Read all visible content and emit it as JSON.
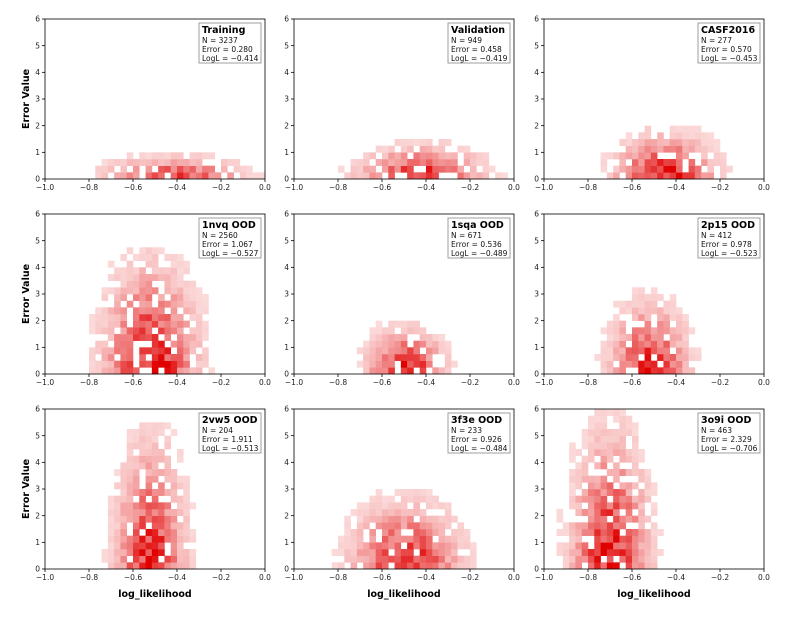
{
  "figure": {
    "xlabel": "log_likelihood",
    "ylabel": "Error Value"
  },
  "chart_data": [
    {
      "type": "heatmap",
      "title": "Training",
      "stats": [
        "N = 3237",
        "Error = 0.280",
        "LogL = −0.414"
      ],
      "xlim": [
        -1.0,
        0.0
      ],
      "ylim": [
        0,
        6
      ],
      "xticks": [
        -1.0,
        -0.8,
        -0.6,
        -0.4,
        -0.2,
        0.0
      ],
      "xtick_labels": [
        "−1.0",
        "−0.8",
        "−0.6",
        "−0.4",
        "−0.2",
        "0.0"
      ],
      "yticks": [
        0,
        1,
        2,
        3,
        4,
        5,
        6
      ],
      "ytick_labels": [
        "0",
        "1",
        "2",
        "3",
        "4",
        "5",
        "6"
      ],
      "xlabel": "",
      "ylabel": "Error Value",
      "density": {
        "center": -0.414,
        "spread": 0.18,
        "ymax": 1.0,
        "peak": 0.75
      }
    },
    {
      "type": "heatmap",
      "title": "Validation",
      "stats": [
        "N = 949",
        "Error = 0.458",
        "LogL = −0.419"
      ],
      "xlim": [
        -1.0,
        0.0
      ],
      "ylim": [
        0,
        6
      ],
      "xticks": [
        -1.0,
        -0.8,
        -0.6,
        -0.4,
        -0.2,
        0.0
      ],
      "xtick_labels": [
        "−1.0",
        "−0.8",
        "−0.6",
        "−0.4",
        "−0.2",
        "0.0"
      ],
      "yticks": [
        0,
        1,
        2,
        3,
        4,
        5,
        6
      ],
      "ytick_labels": [
        "0",
        "1",
        "2",
        "3",
        "4",
        "5",
        "6"
      ],
      "xlabel": "",
      "ylabel": "",
      "density": {
        "center": -0.42,
        "spread": 0.16,
        "ymax": 1.5,
        "peak": 0.85
      }
    },
    {
      "type": "heatmap",
      "title": "CASF2016",
      "stats": [
        "N = 277",
        "Error = 0.570",
        "LogL = −0.453"
      ],
      "xlim": [
        -1.0,
        0.0
      ],
      "ylim": [
        0,
        6
      ],
      "xticks": [
        -1.0,
        -0.8,
        -0.6,
        -0.4,
        -0.2,
        0.0
      ],
      "xtick_labels": [
        "−1.0",
        "−0.8",
        "−0.6",
        "−0.4",
        "−0.2",
        "0.0"
      ],
      "yticks": [
        0,
        1,
        2,
        3,
        4,
        5,
        6
      ],
      "ytick_labels": [
        "0",
        "1",
        "2",
        "3",
        "4",
        "5",
        "6"
      ],
      "xlabel": "",
      "ylabel": "",
      "density": {
        "center": -0.45,
        "spread": 0.13,
        "ymax": 2.0,
        "peak": 0.9
      }
    },
    {
      "type": "heatmap",
      "title": "1nvq OOD",
      "stats": [
        "N = 2560",
        "Error = 1.067",
        "LogL = −0.527"
      ],
      "xlim": [
        -1.0,
        0.0
      ],
      "ylim": [
        0,
        6
      ],
      "xticks": [
        -1.0,
        -0.8,
        -0.6,
        -0.4,
        -0.2,
        0.0
      ],
      "xtick_labels": [
        "−1.0",
        "−0.8",
        "−0.6",
        "−0.4",
        "−0.2",
        "0.0"
      ],
      "yticks": [
        0,
        1,
        2,
        3,
        4,
        5,
        6
      ],
      "ytick_labels": [
        "0",
        "1",
        "2",
        "3",
        "4",
        "5",
        "6"
      ],
      "xlabel": "",
      "ylabel": "Error Value",
      "density": {
        "center": -0.52,
        "spread": 0.12,
        "ymax": 4.8,
        "peak": 0.95
      }
    },
    {
      "type": "heatmap",
      "title": "1sqa OOD",
      "stats": [
        "N = 671",
        "Error = 0.536",
        "LogL = −0.489"
      ],
      "xlim": [
        -1.0,
        0.0
      ],
      "ylim": [
        0,
        6
      ],
      "xticks": [
        -1.0,
        -0.8,
        -0.6,
        -0.4,
        -0.2,
        0.0
      ],
      "xtick_labels": [
        "−1.0",
        "−0.8",
        "−0.6",
        "−0.4",
        "−0.2",
        "0.0"
      ],
      "yticks": [
        0,
        1,
        2,
        3,
        4,
        5,
        6
      ],
      "ytick_labels": [
        "0",
        "1",
        "2",
        "3",
        "4",
        "5",
        "6"
      ],
      "xlabel": "",
      "ylabel": "",
      "density": {
        "center": -0.49,
        "spread": 0.1,
        "ymax": 2.0,
        "peak": 0.9
      }
    },
    {
      "type": "heatmap",
      "title": "2p15 OOD",
      "stats": [
        "N = 412",
        "Error = 0.978",
        "LogL = −0.523"
      ],
      "xlim": [
        -1.0,
        0.0
      ],
      "ylim": [
        0,
        6
      ],
      "xticks": [
        -1.0,
        -0.8,
        -0.6,
        -0.4,
        -0.2,
        0.0
      ],
      "xtick_labels": [
        "−1.0",
        "−0.8",
        "−0.6",
        "−0.4",
        "−0.2",
        "0.0"
      ],
      "yticks": [
        0,
        1,
        2,
        3,
        4,
        5,
        6
      ],
      "ytick_labels": [
        "0",
        "1",
        "2",
        "3",
        "4",
        "5",
        "6"
      ],
      "xlabel": "",
      "ylabel": "",
      "density": {
        "center": -0.52,
        "spread": 0.1,
        "ymax": 3.2,
        "peak": 0.85
      }
    },
    {
      "type": "heatmap",
      "title": "2vw5 OOD",
      "stats": [
        "N = 204",
        "Error = 1.911",
        "LogL = −0.513"
      ],
      "xlim": [
        -1.0,
        0.0
      ],
      "ylim": [
        0,
        6
      ],
      "xticks": [
        -1.0,
        -0.8,
        -0.6,
        -0.4,
        -0.2,
        0.0
      ],
      "xtick_labels": [
        "−1.0",
        "−0.8",
        "−0.6",
        "−0.4",
        "−0.2",
        "0.0"
      ],
      "yticks": [
        0,
        1,
        2,
        3,
        4,
        5,
        6
      ],
      "ytick_labels": [
        "0",
        "1",
        "2",
        "3",
        "4",
        "5",
        "6"
      ],
      "xlabel": "log_likelihood",
      "ylabel": "Error Value",
      "density": {
        "center": -0.52,
        "spread": 0.09,
        "ymax": 5.6,
        "peak": 0.85
      }
    },
    {
      "type": "heatmap",
      "title": "3f3e OOD",
      "stats": [
        "N = 233",
        "Error = 0.926",
        "LogL = −0.484"
      ],
      "xlim": [
        -1.0,
        0.0
      ],
      "ylim": [
        0,
        6
      ],
      "xticks": [
        -1.0,
        -0.8,
        -0.6,
        -0.4,
        -0.2,
        0.0
      ],
      "xtick_labels": [
        "−1.0",
        "−0.8",
        "−0.6",
        "−0.4",
        "−0.2",
        "0.0"
      ],
      "yticks": [
        0,
        1,
        2,
        3,
        4,
        5,
        6
      ],
      "ytick_labels": [
        "0",
        "1",
        "2",
        "3",
        "4",
        "5",
        "6"
      ],
      "xlabel": "log_likelihood",
      "ylabel": "",
      "density": {
        "center": -0.49,
        "spread": 0.14,
        "ymax": 3.0,
        "peak": 0.85
      }
    },
    {
      "type": "heatmap",
      "title": "3o9i OOD",
      "stats": [
        "N = 463",
        "Error = 2.329",
        "LogL = −0.706"
      ],
      "xlim": [
        -1.0,
        0.0
      ],
      "ylim": [
        0,
        6
      ],
      "xticks": [
        -1.0,
        -0.8,
        -0.6,
        -0.4,
        -0.2,
        0.0
      ],
      "xtick_labels": [
        "−1.0",
        "−0.8",
        "−0.6",
        "−0.4",
        "−0.2",
        "0.0"
      ],
      "yticks": [
        0,
        1,
        2,
        3,
        4,
        5,
        6
      ],
      "ytick_labels": [
        "0",
        "1",
        "2",
        "3",
        "4",
        "5",
        "6"
      ],
      "xlabel": "log_likelihood",
      "ylabel": "",
      "density": {
        "center": -0.7,
        "spread": 0.1,
        "ymax": 6.0,
        "peak": 0.9
      }
    }
  ],
  "colors": {
    "cmap_low": "#fde8e8",
    "cmap_high": "#e00000",
    "axis": "#000000",
    "legend_edge": "#888888"
  }
}
